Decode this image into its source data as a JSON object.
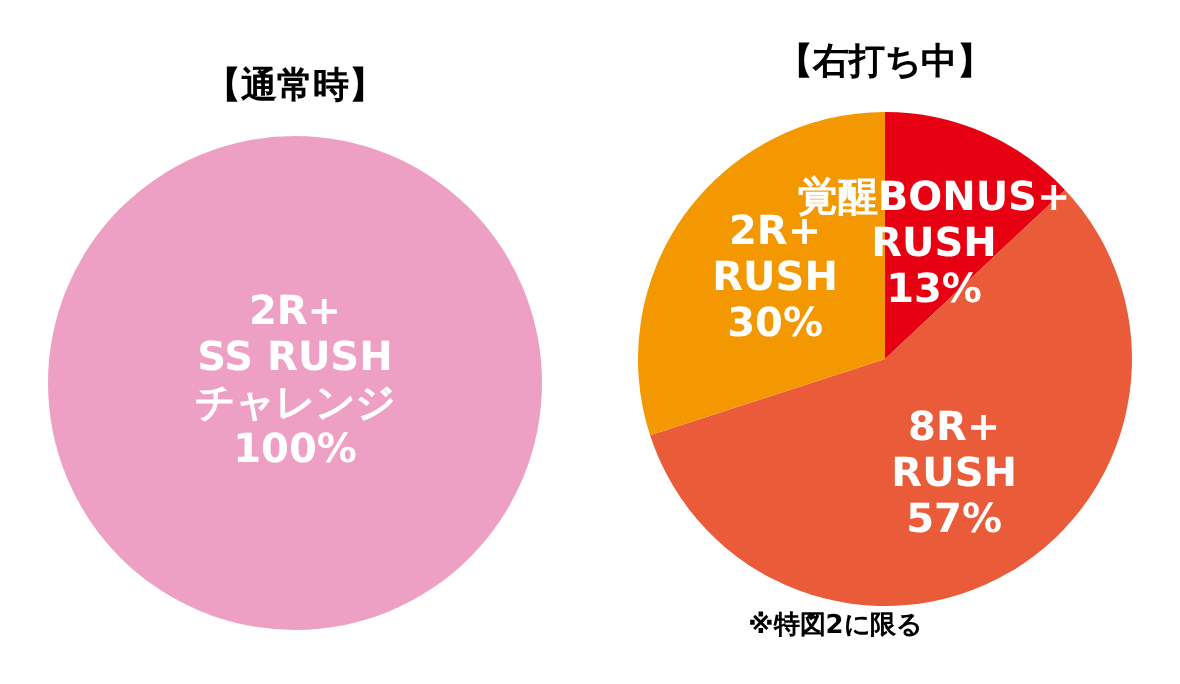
{
  "chart_data": [
    {
      "type": "pie",
      "title": "【通常時】",
      "categories": [
        "2R+\nSS RUSH\nチャレンジ"
      ],
      "values": [
        100
      ],
      "value_labels": [
        "100%"
      ],
      "colors": [
        "#eea0c4"
      ],
      "legend": false
    },
    {
      "type": "pie",
      "title": "【右打ち中】",
      "categories": [
        "覚醒BONUS+\nRUSH",
        "8R+\nRUSH",
        "2R+\nRUSH"
      ],
      "values": [
        13,
        57,
        30
      ],
      "value_labels": [
        "13%",
        "57%",
        "30%"
      ],
      "colors": [
        "#e60012",
        "#ea5b3a",
        "#f39800"
      ],
      "legend": false,
      "annotations": [
        "※特図2に限る"
      ]
    }
  ]
}
